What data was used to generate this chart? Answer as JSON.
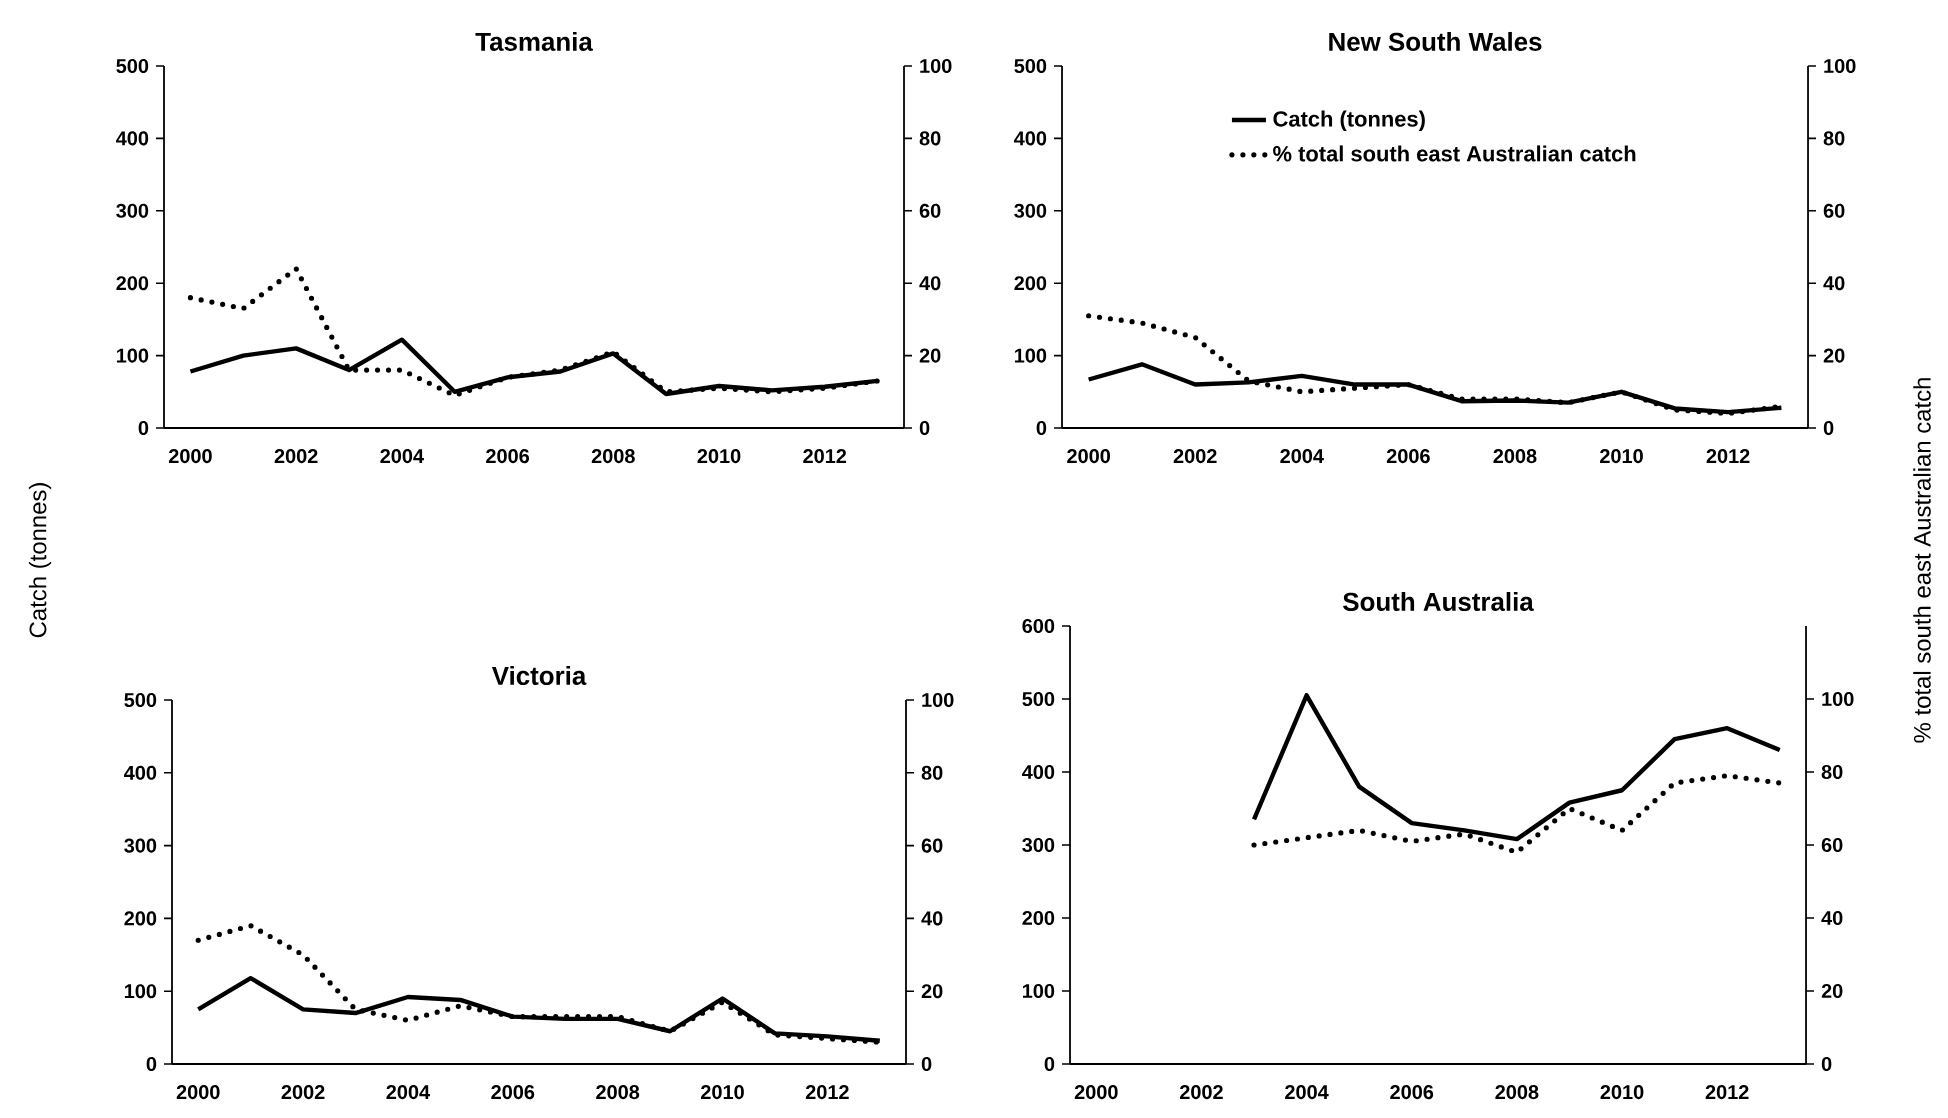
{
  "chart_data": [
    {
      "type": "line",
      "title": "Tasmania",
      "ylabel": "Catch (tonnes)",
      "categories": [
        "2000",
        null,
        "2002",
        null,
        "2004",
        null,
        "2006",
        null,
        "2008",
        null,
        "2010",
        null,
        "2012",
        null
      ],
      "ylim": [
        0,
        500
      ],
      "yticks": [
        0,
        100,
        200,
        300,
        400,
        500
      ],
      "y2lim": [
        0,
        100
      ],
      "y2ticks": [
        0,
        20,
        40,
        60,
        80,
        100
      ],
      "series": [
        {
          "color": "#000000",
          "line_style": "solid",
          "values": [
            78,
            100,
            110,
            80,
            122,
            50,
            70,
            78,
            103,
            47,
            58,
            52,
            57,
            65
          ]
        },
        {
          "color": "#000000",
          "line_style": "dotted",
          "axis": "y2",
          "values": [
            36,
            33,
            44,
            16,
            16,
            9,
            14,
            16,
            21,
            10,
            11,
            10,
            11,
            13
          ]
        }
      ]
    },
    {
      "type": "line",
      "title": "New South Wales",
      "y2label": "% total south east Australian catch",
      "legend": "top",
      "categories": [
        "2000",
        null,
        "2002",
        null,
        "2004",
        null,
        "2006",
        null,
        "2008",
        null,
        "2010",
        null,
        "2012",
        null
      ],
      "ylim": [
        0,
        500
      ],
      "yticks": [
        0,
        100,
        200,
        300,
        400,
        500
      ],
      "y2lim": [
        0,
        100
      ],
      "y2ticks": [
        0,
        20,
        40,
        60,
        80,
        100
      ],
      "series": [
        {
          "name": "Catch (tonnes)",
          "color": "#000000",
          "line_style": "solid",
          "values": [
            67,
            88,
            60,
            63,
            72,
            60,
            60,
            37,
            38,
            35,
            50,
            27,
            22,
            28
          ]
        },
        {
          "name": "% total south east Australian catch",
          "color": "#000000",
          "line_style": "dotted",
          "axis": "y2",
          "values": [
            31,
            29,
            25,
            13,
            10,
            11,
            12,
            8,
            8,
            7,
            10,
            5,
            4,
            6
          ]
        }
      ]
    },
    {
      "type": "line",
      "title": "Victoria",
      "categories": [
        "2000",
        null,
        "2002",
        null,
        "2004",
        null,
        "2006",
        null,
        "2008",
        null,
        "2010",
        null,
        "2012",
        null
      ],
      "ylim": [
        0,
        500
      ],
      "yticks": [
        0,
        100,
        200,
        300,
        400,
        500
      ],
      "y2lim": [
        0,
        100
      ],
      "y2ticks": [
        0,
        20,
        40,
        60,
        80,
        100
      ],
      "series": [
        {
          "color": "#000000",
          "line_style": "solid",
          "values": [
            75,
            118,
            75,
            70,
            92,
            88,
            65,
            62,
            62,
            45,
            90,
            42,
            38,
            32
          ]
        },
        {
          "color": "#000000",
          "line_style": "dotted",
          "axis": "y2",
          "values": [
            34,
            38,
            30,
            15,
            12,
            16,
            13,
            13,
            13,
            9,
            17,
            8,
            7,
            6
          ]
        }
      ]
    },
    {
      "type": "line",
      "title": "South Australia",
      "categories": [
        "2000",
        null,
        "2002",
        null,
        "2004",
        null,
        "2006",
        null,
        "2008",
        null,
        "2010",
        null,
        "2012",
        null
      ],
      "ylim": [
        0,
        600
      ],
      "yticks": [
        0,
        100,
        200,
        300,
        400,
        500,
        600
      ],
      "y2lim": [
        0,
        120
      ],
      "y2ticks": [
        0,
        20,
        40,
        60,
        80,
        100
      ],
      "series": [
        {
          "color": "#000000",
          "line_style": "solid",
          "values": [
            null,
            null,
            null,
            335,
            505,
            380,
            330,
            320,
            308,
            358,
            375,
            445,
            460,
            430
          ]
        },
        {
          "color": "#000000",
          "line_style": "dotted",
          "axis": "y2",
          "values": [
            null,
            null,
            null,
            60,
            62,
            64,
            61,
            63,
            58,
            70,
            64,
            77,
            79,
            77
          ]
        }
      ]
    }
  ]
}
